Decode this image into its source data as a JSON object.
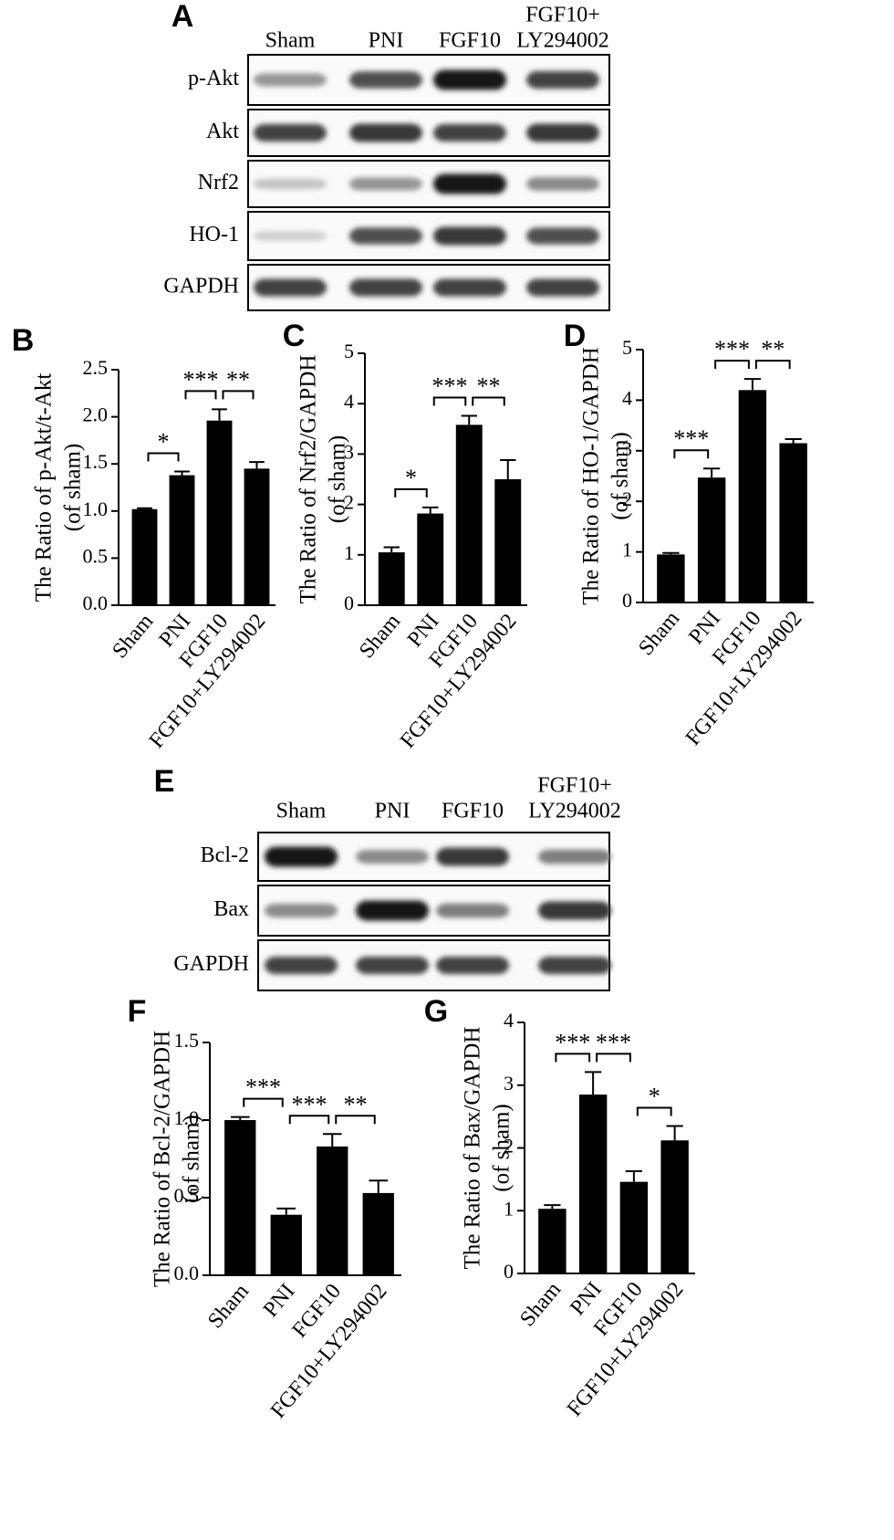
{
  "blots": [
    {
      "panel": "A",
      "columns": [
        [
          "Sham"
        ],
        [
          "PNI"
        ],
        [
          "FGF10"
        ],
        [
          "FGF10+",
          "LY294002"
        ]
      ],
      "rows": [
        "p-Akt",
        "Akt",
        "Nrf2",
        "HO-1",
        "GAPDH"
      ]
    },
    {
      "panel": "E",
      "columns": [
        [
          "Sham"
        ],
        [
          "PNI"
        ],
        [
          "FGF10"
        ],
        [
          "FGF10+",
          "LY294002"
        ]
      ],
      "rows": [
        "Bcl-2",
        "Bax",
        "GAPDH"
      ]
    }
  ],
  "chart_data": [
    {
      "type": "bar",
      "panel": "B",
      "ylabel": "The Ratio of p-Akt/t-Akt",
      "ylabel_sub": "(of sham)",
      "color": "#000000",
      "categories": [
        "Sham",
        "PNI",
        "FGF10",
        "FGF10+LY294002"
      ],
      "values": [
        1.02,
        1.38,
        1.96,
        1.45
      ],
      "errors": [
        0.01,
        0.04,
        0.12,
        0.07
      ],
      "ylim": [
        0,
        2.5
      ],
      "yticks": [
        {
          "value": 0,
          "label": "0.0"
        },
        0.5,
        {
          "value": 1,
          "label": "1.0"
        },
        1.5,
        {
          "value": 2,
          "label": "2.0"
        },
        2.5
      ],
      "annotations": [
        {
          "text": "*",
          "between": [
            0,
            1
          ]
        },
        {
          "text": "***",
          "between": [
            1,
            2
          ]
        },
        {
          "text": "**",
          "between": [
            2,
            3
          ]
        }
      ]
    },
    {
      "type": "bar",
      "panel": "C",
      "ylabel": "The Ratio of Nrf2/GAPDH",
      "ylabel_sub": "(of sham)",
      "color": "#000000",
      "categories": [
        "Sham",
        "PNI",
        "FGF10",
        "FGF10+LY294002"
      ],
      "values": [
        1.05,
        1.82,
        3.58,
        2.5
      ],
      "errors": [
        0.1,
        0.12,
        0.18,
        0.38
      ],
      "ylim": [
        0,
        5
      ],
      "yticks": [
        0,
        1,
        2,
        3,
        4,
        5
      ],
      "annotations": [
        {
          "text": "*",
          "between": [
            0,
            1
          ]
        },
        {
          "text": "***",
          "between": [
            1,
            2
          ]
        },
        {
          "text": "**",
          "between": [
            2,
            3
          ]
        }
      ]
    },
    {
      "type": "bar",
      "panel": "D",
      "ylabel": "The Ratio of HO-1/GAPDH",
      "ylabel_sub": "(of sham)",
      "color": "#000000",
      "categories": [
        "Sham",
        "PNI",
        "FGF10",
        "FGF10+LY294002"
      ],
      "values": [
        0.95,
        2.47,
        4.2,
        3.15
      ],
      "errors": [
        0.03,
        0.18,
        0.22,
        0.08
      ],
      "ylim": [
        0,
        5
      ],
      "yticks": [
        0,
        1,
        2,
        3,
        4,
        5
      ],
      "annotations": [
        {
          "text": "***",
          "between": [
            0,
            1
          ]
        },
        {
          "text": "***",
          "between": [
            1,
            2
          ]
        },
        {
          "text": "**",
          "between": [
            2,
            3
          ]
        }
      ]
    },
    {
      "type": "bar",
      "panel": "F",
      "ylabel": "The Ratio of Bcl-2/GAPDH",
      "ylabel_sub": "(of sham)",
      "color": "#000000",
      "categories": [
        "Sham",
        "PNI",
        "FGF10",
        "FGF10+LY294002"
      ],
      "values": [
        1.0,
        0.39,
        0.83,
        0.53
      ],
      "errors": [
        0.02,
        0.04,
        0.08,
        0.08
      ],
      "ylim": [
        0,
        1.5
      ],
      "yticks": [
        {
          "value": 0,
          "label": "0.0"
        },
        0.5,
        {
          "value": 1,
          "label": "1.0"
        },
        1.5
      ],
      "annotations": [
        {
          "text": "***",
          "between": [
            0,
            1
          ]
        },
        {
          "text": "***",
          "between": [
            1,
            2
          ]
        },
        {
          "text": "**",
          "between": [
            2,
            3
          ]
        }
      ]
    },
    {
      "type": "bar",
      "panel": "G",
      "ylabel": "The Ratio of Bax/GAPDH",
      "ylabel_sub": "(of sham)",
      "color": "#000000",
      "categories": [
        "Sham",
        "PNI",
        "FGF10",
        "FGF10+LY294002"
      ],
      "values": [
        1.03,
        2.85,
        1.46,
        2.12
      ],
      "errors": [
        0.06,
        0.36,
        0.17,
        0.23
      ],
      "ylim": [
        0,
        4
      ],
      "yticks": [
        0,
        1,
        2,
        3,
        4
      ],
      "annotations": [
        {
          "text": "***",
          "between": [
            0,
            1
          ]
        },
        {
          "text": "***",
          "between": [
            1,
            2
          ]
        },
        {
          "text": "*",
          "between": [
            2,
            3
          ]
        }
      ]
    }
  ]
}
